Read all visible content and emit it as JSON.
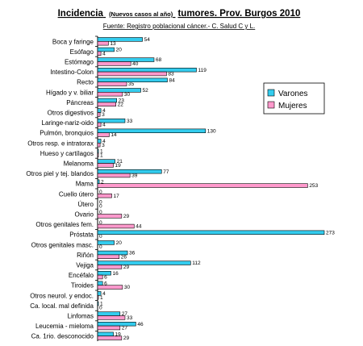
{
  "chart_data": {
    "type": "bar",
    "orientation": "horizontal",
    "title_main": "Incidencia",
    "title_paren": "(Nuevos casos al año)",
    "title_rest": "tumores. Prov. Burgos 2010",
    "subtitle": "Fuente: Registro poblacional cáncer.- C. Salud C y L.",
    "categories": [
      "Boca y faringe",
      "Esófago",
      "Estómago",
      "Intestino-Colon",
      "Recto",
      "Hígado y v. biliar",
      "Páncreas",
      "Otros digestivos",
      "Laringe-nariz-oido",
      "Pulmón, bronquios",
      "Otros resp. e intratorax",
      "Hueso y cartílagos",
      "Melanoma",
      "Otros piel y tej. blandos",
      "Mama",
      "Cuello útero",
      "Útero",
      "Ovario",
      "Otros genitales fem.",
      "Próstata",
      "Otros genitales masc.",
      "Riñón",
      "Vejiga",
      "Encéfalo",
      "Tiroides",
      "Otros neurol. y endoc.",
      "Ca. local. mal definida",
      "Linfomas",
      "Leucemia - mieloma",
      "Ca. 1rio. desconocido"
    ],
    "series": [
      {
        "name": "Varones",
        "color": "#33ccee",
        "values": [
          54,
          20,
          68,
          119,
          84,
          52,
          23,
          4,
          33,
          130,
          4,
          1,
          21,
          77,
          2,
          0,
          0,
          0,
          0,
          273,
          20,
          36,
          112,
          16,
          6,
          4,
          1,
          27,
          46,
          19
        ]
      },
      {
        "name": "Mujeres",
        "color": "#ff99cc",
        "values": [
          13,
          4,
          40,
          83,
          35,
          30,
          22,
          3,
          4,
          14,
          3,
          1,
          19,
          39,
          253,
          17,
          0,
          29,
          44,
          0,
          0,
          26,
          29,
          6,
          30,
          1,
          0,
          33,
          27,
          29
        ]
      }
    ],
    "xlim": [
      0,
      273
    ],
    "legend_position": "right",
    "grid": false
  }
}
